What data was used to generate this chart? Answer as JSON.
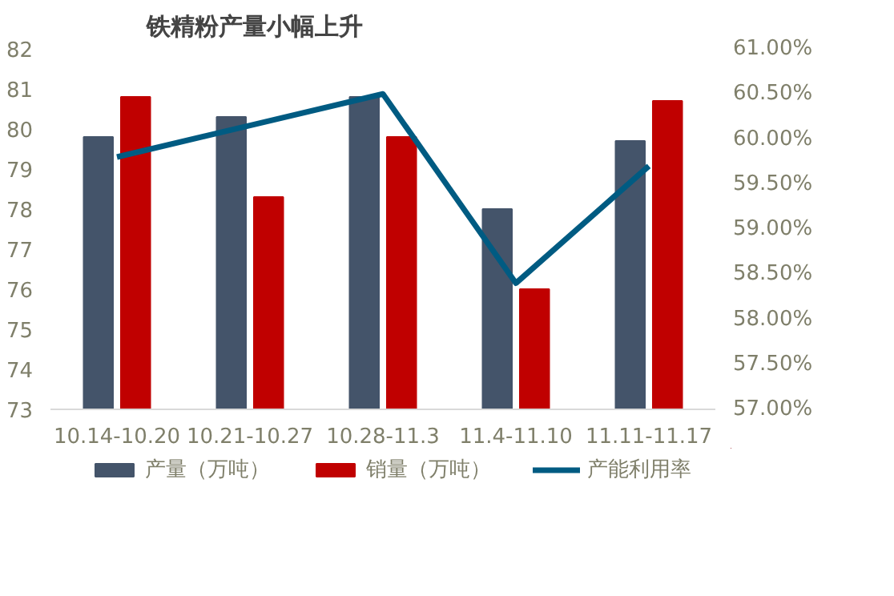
{
  "chart_data": {
    "type": "bar",
    "title": "铁精粉产量小幅上升",
    "categories": [
      "10.14-10.20",
      "10.21-10.27",
      "10.28-11.3",
      "11.4-11.10",
      "11.11-11.17"
    ],
    "series": [
      {
        "name": "产量（万吨）",
        "color": "#44546a",
        "values": [
          79.8,
          80.3,
          80.8,
          78.0,
          79.7
        ]
      },
      {
        "name": "销量（万吨）",
        "color": "#c00000",
        "values": [
          80.8,
          78.3,
          79.8,
          76.0,
          80.7
        ]
      },
      {
        "name": "产能利用率",
        "type": "line",
        "axis": "y2",
        "color": "#005b82",
        "values": [
          59.8,
          60.15,
          60.5,
          58.4,
          59.7
        ]
      }
    ],
    "ylim": [
      73,
      82
    ],
    "yticks": [
      73,
      74,
      75,
      76,
      77,
      78,
      79,
      80,
      81,
      82
    ],
    "y2lim": [
      57,
      61
    ],
    "y2ticks": [
      {
        "value": 57,
        "label": "57.00%"
      },
      {
        "value": 57.5,
        "label": "57.50%"
      },
      {
        "value": 58,
        "label": "58.00%"
      },
      {
        "value": 58.5,
        "label": "58.50%"
      },
      {
        "value": 59,
        "label": "59.00%"
      },
      {
        "value": 59.5,
        "label": "59.50%"
      },
      {
        "value": 60,
        "label": "60.00%"
      },
      {
        "value": 60.5,
        "label": "60.50%"
      },
      {
        "value": 61,
        "label": "61.00%"
      }
    ],
    "grid": false,
    "legend": "bottom"
  }
}
